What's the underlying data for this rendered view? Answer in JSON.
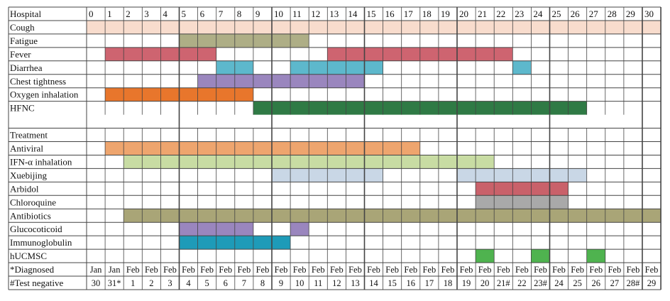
{
  "header": {
    "label": "Hospital",
    "days": [
      "0",
      "1",
      "2",
      "3",
      "4",
      "5",
      "6",
      "7",
      "8",
      "9",
      "10",
      "11",
      "12",
      "13",
      "14",
      "15",
      "16",
      "17",
      "18",
      "19",
      "20",
      "21",
      "22",
      "23",
      "24",
      "25",
      "26",
      "27",
      "28",
      "29",
      "30"
    ]
  },
  "colors": {
    "grid": "#444444",
    "cough": "#f8dccd",
    "fatigue": "#aeae86",
    "fever": "#ce6470",
    "diarrhea": "#5db8cc",
    "chest": "#9a86be",
    "oxygen": "#e8762c",
    "hfnc": "#2f7a45",
    "antiviral": "#eea56e",
    "ifn": "#c8dca3",
    "xuebijing": "#c9d7e6",
    "arbidol": "#c9616a",
    "chloroquine": "#a9a9a9",
    "antibiotics": "#a9a577",
    "glucocorticoid": "#9a86be",
    "immunoglobulin": "#1e9bb8",
    "hucmsc": "#4fb34f"
  },
  "rows": [
    {
      "label": "Cough",
      "color_key": "cough",
      "ranges": [
        [
          0,
          30
        ]
      ]
    },
    {
      "label": "Fatigue",
      "color_key": "fatigue",
      "ranges": [
        [
          5,
          11
        ]
      ]
    },
    {
      "label": "Fever",
      "color_key": "fever",
      "ranges": [
        [
          1,
          6
        ],
        [
          13,
          22
        ]
      ]
    },
    {
      "label": "Diarrhea",
      "color_key": "diarrhea",
      "ranges": [
        [
          7,
          8
        ],
        [
          11,
          15
        ],
        [
          23,
          23
        ]
      ]
    },
    {
      "label": "Chest tightness",
      "color_key": "chest",
      "ranges": [
        [
          6,
          14
        ]
      ]
    },
    {
      "label": "Oxygen inhalation",
      "color_key": "oxygen",
      "ranges": [
        [
          1,
          8
        ]
      ]
    },
    {
      "label": "HFNC",
      "color_key": "hfnc",
      "ranges": [
        [
          9,
          26
        ]
      ]
    },
    {
      "label": "",
      "color_key": "",
      "ranges": []
    },
    {
      "label": "Treatment",
      "color_key": "",
      "ranges": []
    },
    {
      "label": "Antiviral",
      "color_key": "antiviral",
      "ranges": [
        [
          1,
          17
        ]
      ]
    },
    {
      "label": "IFN-α inhalation",
      "color_key": "ifn",
      "ranges": [
        [
          2,
          21
        ]
      ]
    },
    {
      "label": "Xuebijing",
      "color_key": "xuebijing",
      "ranges": [
        [
          10,
          15
        ],
        [
          20,
          26
        ]
      ]
    },
    {
      "label": "Arbidol",
      "color_key": "arbidol",
      "ranges": [
        [
          21,
          25
        ]
      ]
    },
    {
      "label": "Chloroquine",
      "color_key": "chloroquine",
      "ranges": [
        [
          21,
          25
        ]
      ]
    },
    {
      "label": "Antibiotics",
      "color_key": "antibiotics",
      "ranges": [
        [
          2,
          30
        ]
      ]
    },
    {
      "label": "Glucocoticoid",
      "color_key": "glucocorticoid",
      "ranges": [
        [
          5,
          8
        ],
        [
          11,
          11
        ]
      ]
    },
    {
      "label": "Immunoglobulin",
      "color_key": "immunoglobulin",
      "ranges": [
        [
          5,
          10
        ]
      ]
    },
    {
      "label": "hUCMSC",
      "color_key": "hucmsc",
      "ranges": [
        [
          21,
          21
        ],
        [
          24,
          24
        ],
        [
          27,
          27
        ]
      ]
    }
  ],
  "footer": {
    "label1": "*Diagnosed",
    "label2": "#Test negative",
    "months": [
      "Jan",
      "Jan",
      "Feb",
      "Feb",
      "Feb",
      "Feb",
      "Feb",
      "Feb",
      "Feb",
      "Feb",
      "Feb",
      "Feb",
      "Feb",
      "Feb",
      "Feb",
      "Feb",
      "Feb",
      "Feb",
      "Feb",
      "Feb",
      "Feb",
      "Feb",
      "Feb",
      "Feb",
      "Feb",
      "Feb",
      "Feb",
      "Feb",
      "Feb",
      "Feb",
      "Feb"
    ],
    "dates": [
      "30",
      "31*",
      "1",
      "2",
      "3",
      "4",
      "5",
      "6",
      "7",
      "8",
      "9",
      "10",
      "11",
      "12",
      "13",
      "14",
      "15",
      "16",
      "17",
      "18",
      "19",
      "20",
      "21#",
      "22",
      "23#",
      "24",
      "25",
      "26",
      "27",
      "28#",
      "29"
    ]
  }
}
